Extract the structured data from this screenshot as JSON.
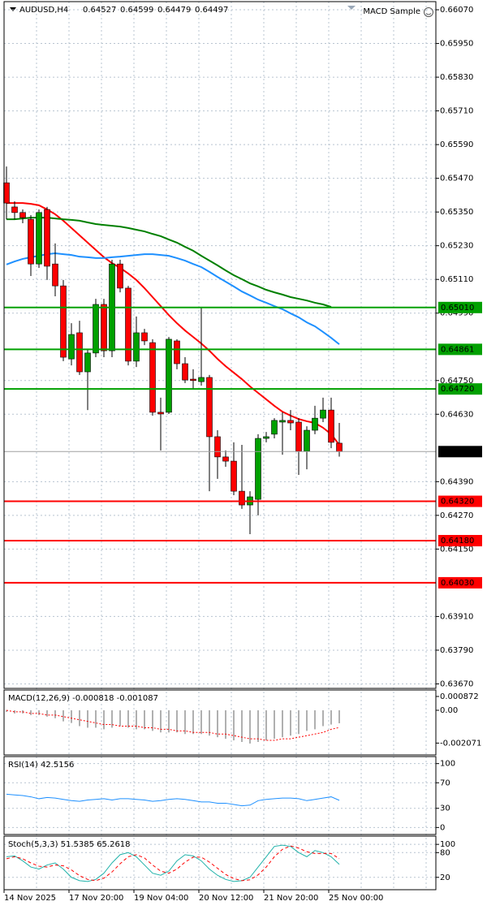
{
  "chart_data": [
    {
      "type": "candlestick",
      "symbol": "AUDUSD,H4",
      "ohlc": [
        0.64527,
        0.64599,
        0.64479,
        0.64497
      ],
      "expert": "MACD Sample",
      "categories": [
        "14 Nov 2025",
        null,
        null,
        null,
        null,
        null,
        null,
        null,
        "17 Nov 20:00",
        null,
        null,
        null,
        null,
        null,
        null,
        null,
        "19 Nov 04:00",
        null,
        null,
        null,
        null,
        null,
        null,
        null,
        "20 Nov 12:00",
        null,
        null,
        null,
        null,
        null,
        null,
        null,
        "21 Nov 20:00",
        null,
        null,
        null,
        null,
        null,
        null,
        null,
        "25 Nov 00:00",
        null
      ],
      "open": [
        0.65454,
        0.65368,
        0.65348,
        0.65324,
        0.65165,
        0.65359,
        0.65165,
        0.65087,
        0.64827,
        0.6492,
        0.64781,
        0.64848,
        0.65021,
        0.64856,
        0.65165,
        0.65079,
        0.64819,
        0.6492,
        0.64885,
        0.64637,
        0.64637,
        0.64891,
        0.6481,
        0.64755,
        0.64746,
        0.64761,
        0.6455,
        0.64478,
        0.64463,
        0.64356,
        0.64307,
        0.64327,
        0.64544,
        0.64559,
        0.64602,
        0.64608,
        0.64602,
        0.64498,
        0.64573,
        0.64616,
        0.64645,
        0.64527
      ],
      "high": [
        0.65512,
        0.65388,
        0.65359,
        0.65339,
        0.65359,
        0.65368,
        0.65238,
        0.65108,
        0.64954,
        0.64963,
        0.64862,
        0.65041,
        0.65041,
        0.6518,
        0.6518,
        0.65087,
        0.64978,
        0.64934,
        0.64897,
        0.64689,
        0.64905,
        0.64897,
        0.64833,
        0.6479,
        0.65012,
        0.6477,
        0.64573,
        0.64501,
        0.6453,
        0.64521,
        0.64356,
        0.64559,
        0.64567,
        0.64616,
        0.64637,
        0.64645,
        0.64616,
        0.64587,
        0.6466,
        0.64689,
        0.64689,
        0.64599
      ],
      "low": [
        0.65324,
        0.65324,
        0.6531,
        0.65122,
        0.65151,
        0.65108,
        0.6505,
        0.64819,
        0.64804,
        0.6477,
        0.64645,
        0.64833,
        0.64833,
        0.64833,
        0.65064,
        0.64804,
        0.64798,
        0.64876,
        0.64625,
        0.64501,
        0.64631,
        0.6479,
        0.64741,
        0.64718,
        0.64732,
        0.64356,
        0.644,
        0.64443,
        0.64342,
        0.64293,
        0.64203,
        0.6427,
        0.6453,
        0.64544,
        0.64486,
        0.64573,
        0.64414,
        0.64434,
        0.64559,
        0.64602,
        0.64509,
        0.64479
      ],
      "close": [
        0.65382,
        0.65348,
        0.6533,
        0.65165,
        0.65348,
        0.65157,
        0.65087,
        0.64833,
        0.64914,
        0.64781,
        0.64848,
        0.65021,
        0.64856,
        0.65165,
        0.65079,
        0.64819,
        0.6492,
        0.64891,
        0.64637,
        0.64631,
        0.64897,
        0.6481,
        0.64752,
        0.6475,
        0.64761,
        0.6455,
        0.64478,
        0.64463,
        0.64356,
        0.64307,
        0.64336,
        0.64544,
        0.6455,
        0.64608,
        0.64608,
        0.64599,
        0.64498,
        0.64573,
        0.64616,
        0.64645,
        0.6453,
        0.64497
      ],
      "up_color": "#00a000",
      "down_color": "#ff0000",
      "series": [
        {
          "color": "#ff0000",
          "values": [
            0.65382,
            0.65382,
            0.65382,
            0.65379,
            0.65374,
            0.65359,
            0.65342,
            0.65319,
            0.65293,
            0.65267,
            0.65241,
            0.65215,
            0.65189,
            0.65168,
            0.65151,
            0.65131,
            0.65108,
            0.65079,
            0.65047,
            0.65015,
            0.64983,
            0.64954,
            0.64928,
            0.64905,
            0.64882,
            0.64856,
            0.64827,
            0.64801,
            0.64778,
            0.64755,
            0.64729,
            0.64706,
            0.64683,
            0.6466,
            0.64639,
            0.64625,
            0.64613,
            0.64605,
            0.64599,
            0.64582,
            0.64559,
            0.64521
          ]
        },
        {
          "color": "#1e90ff",
          "values": [
            0.65163,
            0.65174,
            0.65183,
            0.65189,
            0.65194,
            0.652,
            0.65203,
            0.652,
            0.65197,
            0.65191,
            0.65189,
            0.65186,
            0.65186,
            0.65189,
            0.65191,
            0.65194,
            0.65197,
            0.652,
            0.652,
            0.65197,
            0.65194,
            0.65186,
            0.65177,
            0.65165,
            0.65154,
            0.65137,
            0.65119,
            0.65102,
            0.65085,
            0.65067,
            0.65053,
            0.65038,
            0.65027,
            0.65015,
            0.65004,
            0.64989,
            0.64975,
            0.64957,
            0.64943,
            0.64923,
            0.64902,
            0.64879
          ]
        },
        {
          "color": "#008000",
          "values": [
            0.65324,
            0.65324,
            0.65327,
            0.6533,
            0.6533,
            0.6533,
            0.65327,
            0.65324,
            0.65322,
            0.65319,
            0.65313,
            0.65307,
            0.65304,
            0.65301,
            0.65298,
            0.65293,
            0.65287,
            0.65281,
            0.65272,
            0.65264,
            0.65252,
            0.65241,
            0.65226,
            0.65212,
            0.65194,
            0.65177,
            0.6516,
            0.65142,
            0.65125,
            0.65111,
            0.65096,
            0.65085,
            0.65073,
            0.65064,
            0.65056,
            0.65047,
            0.65041,
            0.65035,
            0.65027,
            0.65021,
            0.65012,
            null
          ]
        }
      ],
      "levels": [
        {
          "value": 0.6501,
          "label": "0.65010",
          "color": "#00a000"
        },
        {
          "value": 0.64861,
          "label": "0.64861",
          "color": "#00a000"
        },
        {
          "value": 0.6472,
          "label": "0.64720",
          "color": "#00a000"
        },
        {
          "value": 0.6432,
          "label": "0.64320",
          "color": "#ff0000"
        },
        {
          "value": 0.6418,
          "label": "0.64180",
          "color": "#ff0000"
        },
        {
          "value": 0.6403,
          "label": "0.64030",
          "color": "#ff0000"
        }
      ],
      "ylim": [
        0.63654,
        0.66099
      ],
      "yticks": [
        {
          "value": 0.6607,
          "label": "0.66070"
        },
        {
          "value": 0.6595,
          "label": "0.65950"
        },
        {
          "value": 0.6583,
          "label": "0.65830"
        },
        {
          "value": 0.6571,
          "label": "0.65710"
        },
        {
          "value": 0.6559,
          "label": "0.65590"
        },
        {
          "value": 0.6547,
          "label": "0.65470"
        },
        {
          "value": 0.6535,
          "label": "0.65350"
        },
        {
          "value": 0.6523,
          "label": "0.65230"
        },
        {
          "value": 0.6511,
          "label": "0.65110"
        },
        {
          "value": 0.6499,
          "label": "0.64990"
        },
        {
          "value": 0.6475,
          "label": "0.64750"
        },
        {
          "value": 0.6463,
          "label": "0.64630"
        },
        {
          "value": 0.6439,
          "label": "0.64390"
        },
        {
          "value": 0.6427,
          "label": "0.64270"
        },
        {
          "value": 0.6415,
          "label": "0.64150"
        },
        {
          "value": 0.6391,
          "label": "0.63910"
        },
        {
          "value": 0.6379,
          "label": "0.63790"
        },
        {
          "value": 0.6367,
          "label": "0.63670"
        }
      ],
      "grid": true
    },
    {
      "type": "macd",
      "title": "MACD(12,26,9) -0.000818 -0.001087",
      "ylim": [
        -0.00282,
        0.00128
      ],
      "yticks": [
        0.000872,
        {
          "value": 0,
          "label": "0.00"
        },
        -0.002071
      ],
      "series": [
        {
          "color": "#b0b0b0",
          "values": [
            -0.0001,
            -0.0002,
            -0.0002,
            -0.0003,
            -0.0003,
            -0.0004,
            -0.0005,
            -0.0007,
            -0.0008,
            -0.001,
            -0.0011,
            -0.0011,
            -0.0012,
            -0.0011,
            -0.001,
            -0.0011,
            -0.0012,
            -0.0012,
            -0.0013,
            -0.0014,
            -0.0014,
            -0.0014,
            -0.0015,
            -0.0015,
            -0.0015,
            -0.0016,
            -0.0017,
            -0.0018,
            -0.0019,
            -0.002,
            -0.0021,
            -0.002,
            -0.0019,
            -0.0018,
            -0.0017,
            -0.0016,
            -0.0015,
            -0.0013,
            -0.0012,
            -0.001,
            -0.0009,
            -0.000818
          ]
        },
        {
          "color": "#ff0000",
          "values": [
            0,
            -0.0001,
            -0.0001,
            -0.0002,
            -0.0002,
            -0.0003,
            -0.0003,
            -0.0004,
            -0.0005,
            -0.0006,
            -0.0007,
            -0.0008,
            -0.0009,
            -0.0009,
            -0.001,
            -0.001,
            -0.001,
            -0.0011,
            -0.0011,
            -0.0012,
            -0.0012,
            -0.0013,
            -0.0013,
            -0.0014,
            -0.0014,
            -0.0014,
            -0.0015,
            -0.0015,
            -0.0016,
            -0.0017,
            -0.0018,
            -0.0018,
            -0.0019,
            -0.0019,
            -0.0018,
            -0.0018,
            -0.0017,
            -0.0016,
            -0.0015,
            -0.0014,
            -0.0012,
            -0.001087
          ]
        }
      ],
      "grid": false
    },
    {
      "type": "line",
      "title": "RSI(14) 42.5156",
      "ylim": [
        -11,
        111
      ],
      "yticks": [
        100,
        70,
        30,
        0
      ],
      "series": [
        {
          "color": "#1e90ff",
          "style": "solid",
          "values": [
            52,
            51,
            50,
            48,
            45,
            47,
            46,
            44,
            42,
            41,
            43,
            44,
            45,
            43,
            45,
            45,
            44,
            43,
            41,
            42,
            44,
            45,
            44,
            42,
            40,
            40,
            38,
            38,
            36,
            34,
            35,
            42,
            44,
            45,
            46,
            46,
            45,
            42,
            44,
            46,
            48,
            42.5156
          ]
        }
      ],
      "grid": true
    },
    {
      "type": "line",
      "title": "Stoch(5,3,3) 51.5385 65.2618",
      "ylim": [
        -10,
        120
      ],
      "yticks": [
        100,
        80,
        20
      ],
      "series": [
        {
          "color": "#20b2aa",
          "style": "solid",
          "values": [
            70,
            72,
            60,
            45,
            40,
            50,
            55,
            40,
            20,
            12,
            10,
            15,
            30,
            55,
            75,
            80,
            70,
            50,
            30,
            25,
            35,
            60,
            75,
            72,
            60,
            40,
            25,
            15,
            10,
            12,
            20,
            45,
            70,
            95,
            98,
            95,
            80,
            70,
            85,
            80,
            70,
            51.5385
          ]
        },
        {
          "color": "#ff0000",
          "style": "dashed",
          "values": [
            65,
            70,
            65,
            55,
            47,
            45,
            50,
            48,
            38,
            24,
            15,
            12,
            18,
            33,
            53,
            70,
            75,
            67,
            50,
            35,
            30,
            40,
            57,
            69,
            69,
            57,
            42,
            27,
            17,
            12,
            14,
            26,
            45,
            70,
            88,
            96,
            91,
            82,
            78,
            78,
            78,
            65.2618
          ]
        }
      ],
      "grid": true
    }
  ]
}
